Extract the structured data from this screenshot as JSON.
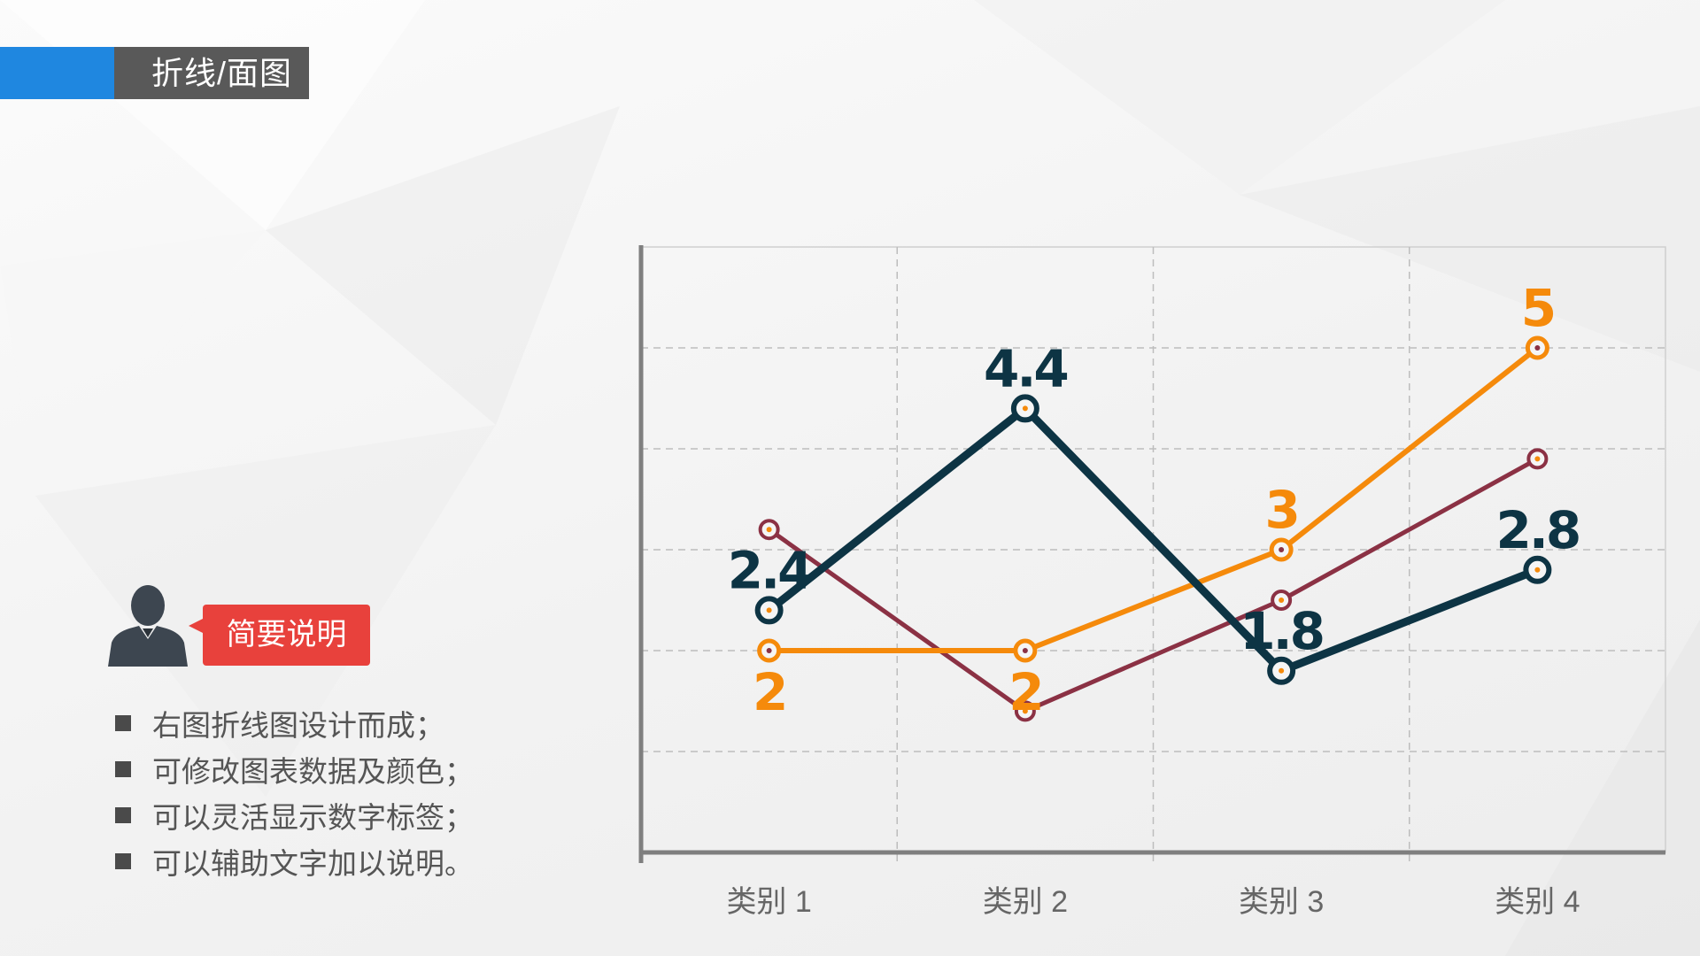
{
  "header": {
    "title": "折线/面图"
  },
  "note": {
    "label": "简要说明",
    "items": [
      "右图折线图设计而成；",
      "可修改图表数据及颜色；",
      "可以灵活显示数字标签；",
      "可以辅助文字加以说明。"
    ]
  },
  "colors": {
    "accent": "#1f87e0",
    "title_bg": "#595959",
    "callout": "#e8413c"
  },
  "chart_data": {
    "type": "line",
    "categories": [
      "类别 1",
      "类别 2",
      "类别 3",
      "类别 4"
    ],
    "ylim": [
      0,
      6
    ],
    "grid": true,
    "series": [
      {
        "values": [
          3.2,
          1.4,
          2.5,
          3.9
        ],
        "color": "#8b3144",
        "labels": [
          "",
          "",
          "",
          ""
        ]
      },
      {
        "values": [
          2,
          2,
          3,
          5
        ],
        "color": "#f58a0b",
        "labels": [
          "2",
          "2",
          "3",
          "5"
        ]
      },
      {
        "values": [
          2.4,
          4.4,
          1.8,
          2.8
        ],
        "color": "#0d3444",
        "labels": [
          "2.4",
          "4.4",
          "1.8",
          "2.8"
        ]
      }
    ]
  }
}
